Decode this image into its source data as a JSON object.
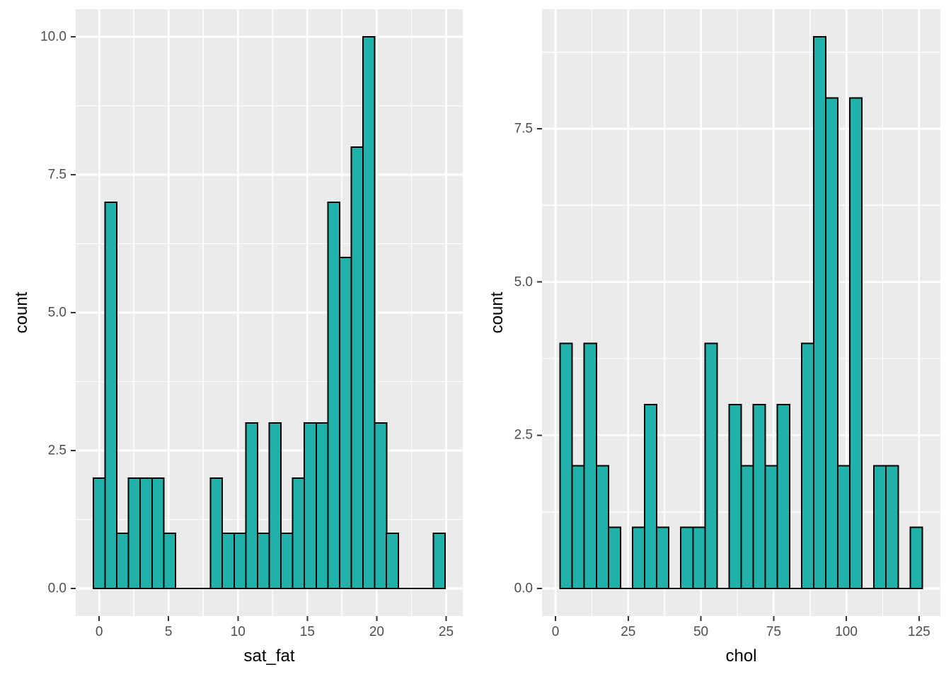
{
  "style": {
    "panel_bg": "#EBEBEB",
    "grid_color": "#FFFFFF",
    "bar_fill": "#20B2AA",
    "bar_stroke": "#000000",
    "tick_mark_color": "#333333",
    "tick_label_color": "#4D4D4D",
    "axis_title_color": "#000000"
  },
  "chart_data": [
    {
      "type": "bar",
      "subtype": "histogram",
      "title": "",
      "xlabel": "sat_fat",
      "ylabel": "count",
      "bin_start": -0.42,
      "bin_width": 0.845,
      "counts": [
        2,
        7,
        1,
        2,
        2,
        2,
        1,
        0,
        0,
        0,
        2,
        1,
        1,
        3,
        1,
        3,
        1,
        2,
        3,
        3,
        7,
        6,
        8,
        10,
        3,
        1,
        0,
        0,
        0,
        1
      ],
      "total_observations": 73,
      "x_ticks": [
        0,
        5,
        10,
        15,
        20,
        25
      ],
      "x_tick_labels": [
        "0",
        "5",
        "10",
        "15",
        "20",
        "25"
      ],
      "x_minor": [
        2.5,
        7.5,
        12.5,
        17.5,
        22.5
      ],
      "y_ticks": [
        0,
        2.5,
        5,
        7.5,
        10
      ],
      "y_tick_labels": [
        "0.0",
        "2.5",
        "5.0",
        "7.5",
        "10.0"
      ],
      "y_minor": [
        1.25,
        3.75,
        6.25,
        8.75
      ],
      "xlim": [
        -1.69,
        26.2
      ],
      "ylim": [
        -0.5,
        10.5
      ],
      "grid": true,
      "legend": false
    },
    {
      "type": "bar",
      "subtype": "histogram",
      "title": "",
      "xlabel": "chol",
      "ylabel": "count",
      "bin_start": 1.6,
      "bin_width": 4.15,
      "counts": [
        4,
        2,
        4,
        2,
        1,
        0,
        1,
        3,
        1,
        0,
        1,
        1,
        4,
        0,
        3,
        2,
        3,
        2,
        3,
        0,
        4,
        9,
        8,
        2,
        8,
        0,
        2,
        2,
        0,
        1
      ],
      "total_observations": 73,
      "x_ticks": [
        0,
        25,
        50,
        75,
        100,
        125
      ],
      "x_tick_labels": [
        "0",
        "25",
        "50",
        "75",
        "100",
        "125"
      ],
      "x_minor": [
        12.5,
        37.5,
        62.5,
        87.5,
        112.5
      ],
      "y_ticks": [
        0,
        2.5,
        5,
        7.5
      ],
      "y_tick_labels": [
        "0.0",
        "2.5",
        "5.0",
        "7.5"
      ],
      "y_minor": [
        1.25,
        3.75,
        6.25,
        8.75
      ],
      "xlim": [
        -4.63,
        132.33
      ],
      "ylim": [
        -0.45,
        9.45
      ],
      "grid": true,
      "legend": false
    }
  ]
}
